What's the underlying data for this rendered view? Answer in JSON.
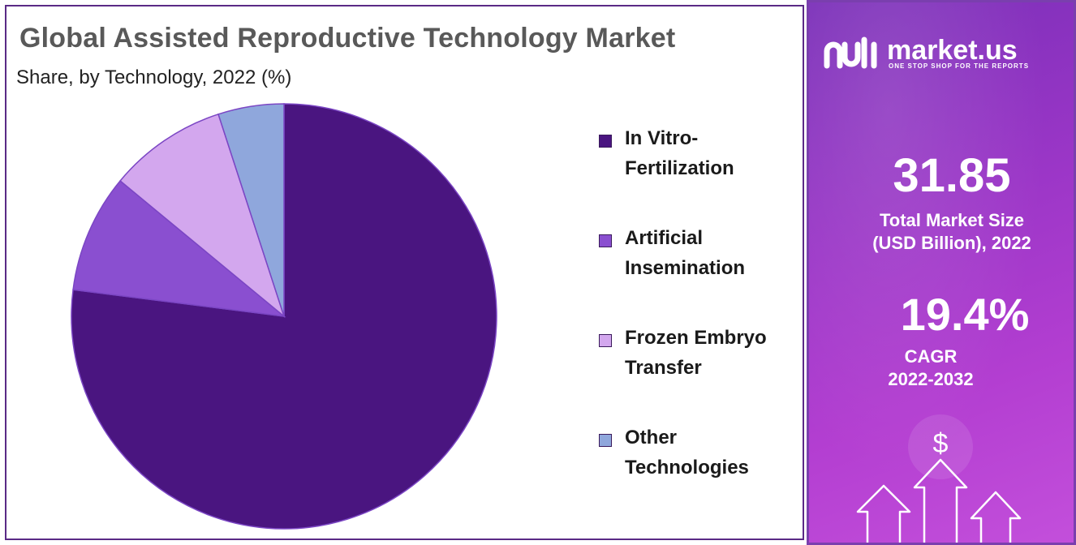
{
  "chart_data": {
    "type": "pie",
    "title": "Global Assisted Reproductive Technology Market",
    "subtitle": "Share, by Technology, 2022 (%)",
    "legend_position": "right",
    "slices": [
      {
        "name": "In Vitro-Fertilization",
        "value": 77.0,
        "color": "#4a1580",
        "legend_lines": [
          "In Vitro-",
          "Fertilization"
        ]
      },
      {
        "name": "Artificial Insemination",
        "value": 9.0,
        "color": "#8a4fd0",
        "legend_lines": [
          "Artificial",
          "Insemination"
        ]
      },
      {
        "name": "Frozen Embryo Transfer",
        "value": 9.0,
        "color": "#d3a7ee",
        "legend_lines": [
          "Frozen Embryo",
          "Transfer"
        ]
      },
      {
        "name": "Other Technologies",
        "value": 5.0,
        "color": "#8fa7dc",
        "legend_lines": [
          "Other",
          "Technologies"
        ]
      }
    ]
  },
  "brand": {
    "name": "market.us",
    "tagline": "ONE STOP SHOP FOR THE REPORTS"
  },
  "stats": {
    "market_size": "31.85",
    "market_size_label_line1": "Total Market Size",
    "market_size_label_line2": "(USD Billion), 2022",
    "cagr": "19.4%",
    "cagr_label_line1": "CAGR",
    "cagr_label_line2": "2022-2032"
  },
  "decor_icons": [
    "dollar-icon",
    "arrow-up-icon"
  ],
  "colors": {
    "panel_border": "#5a2a86",
    "side_gradient_start": "#7a2fb8",
    "side_gradient_end": "#c34fdb"
  }
}
